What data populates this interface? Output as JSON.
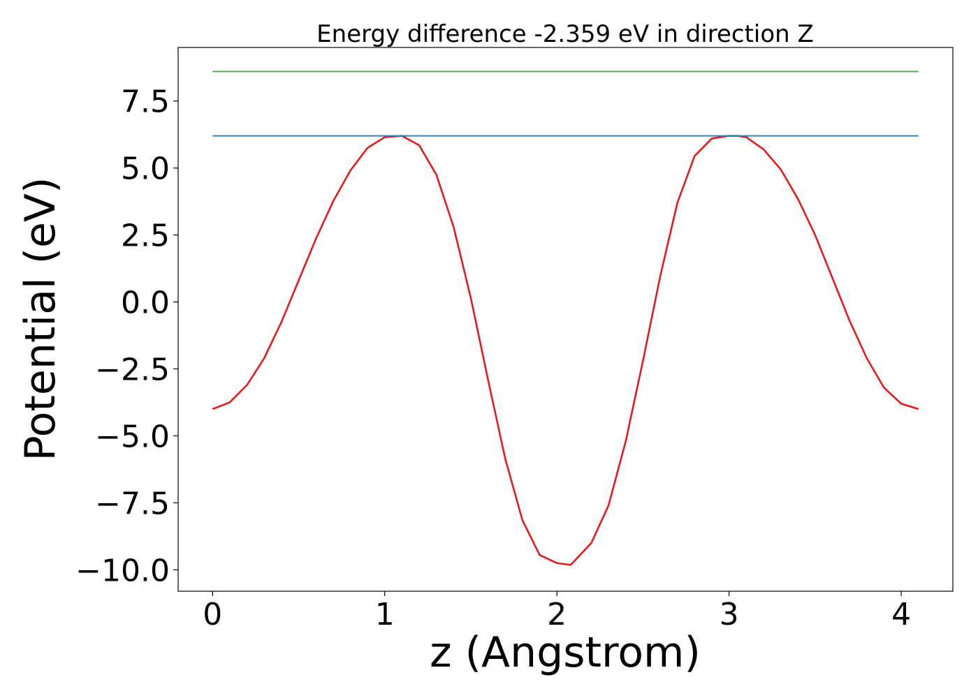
{
  "chart_data": {
    "type": "line",
    "title": "Energy difference -2.359 eV in direction Z",
    "xlabel": "z (Angstrom)",
    "ylabel": "Potential (eV)",
    "xlim": [
      -0.2,
      4.3
    ],
    "ylim": [
      -10.8,
      9.5
    ],
    "xticks": [
      0,
      1,
      2,
      3,
      4
    ],
    "xtick_labels": [
      "0",
      "1",
      "2",
      "3",
      "4"
    ],
    "yticks": [
      7.5,
      5.0,
      2.5,
      0.0,
      -2.5,
      -5.0,
      -7.5,
      -10.0
    ],
    "ytick_labels": [
      "7.5",
      "5.0",
      "2.5",
      "0.0",
      "−2.5",
      "−5.0",
      "−7.5",
      "−10.0"
    ],
    "grid": false,
    "series": [
      {
        "color": "#e41a1c",
        "x": [
          0.0,
          0.1,
          0.2,
          0.3,
          0.4,
          0.5,
          0.6,
          0.7,
          0.8,
          0.9,
          1.0,
          1.1,
          1.2,
          1.3,
          1.4,
          1.5,
          1.6,
          1.7,
          1.8,
          1.9,
          2.0,
          2.08,
          2.2,
          2.3,
          2.4,
          2.5,
          2.6,
          2.7,
          2.8,
          2.9,
          3.0,
          3.05,
          3.1,
          3.2,
          3.3,
          3.4,
          3.5,
          3.6,
          3.7,
          3.8,
          3.9,
          4.0,
          4.1
        ],
        "y": [
          -4.0,
          -3.75,
          -3.1,
          -2.1,
          -0.75,
          0.8,
          2.35,
          3.75,
          4.9,
          5.75,
          6.15,
          6.2,
          5.85,
          4.75,
          2.8,
          0.15,
          -2.9,
          -5.85,
          -8.15,
          -9.45,
          -9.75,
          -9.82,
          -9.0,
          -7.6,
          -5.2,
          -2.2,
          0.95,
          3.7,
          5.45,
          6.1,
          6.2,
          6.2,
          6.15,
          5.7,
          4.95,
          3.85,
          2.5,
          0.9,
          -0.7,
          -2.1,
          -3.2,
          -3.8,
          -4.0
        ]
      },
      {
        "color": "#377eb8",
        "x": [
          0.0,
          4.1
        ],
        "y": [
          6.2,
          6.2
        ]
      },
      {
        "color": "#4daf4a",
        "x": [
          0.0,
          4.1
        ],
        "y": [
          8.6,
          8.6
        ]
      }
    ]
  }
}
